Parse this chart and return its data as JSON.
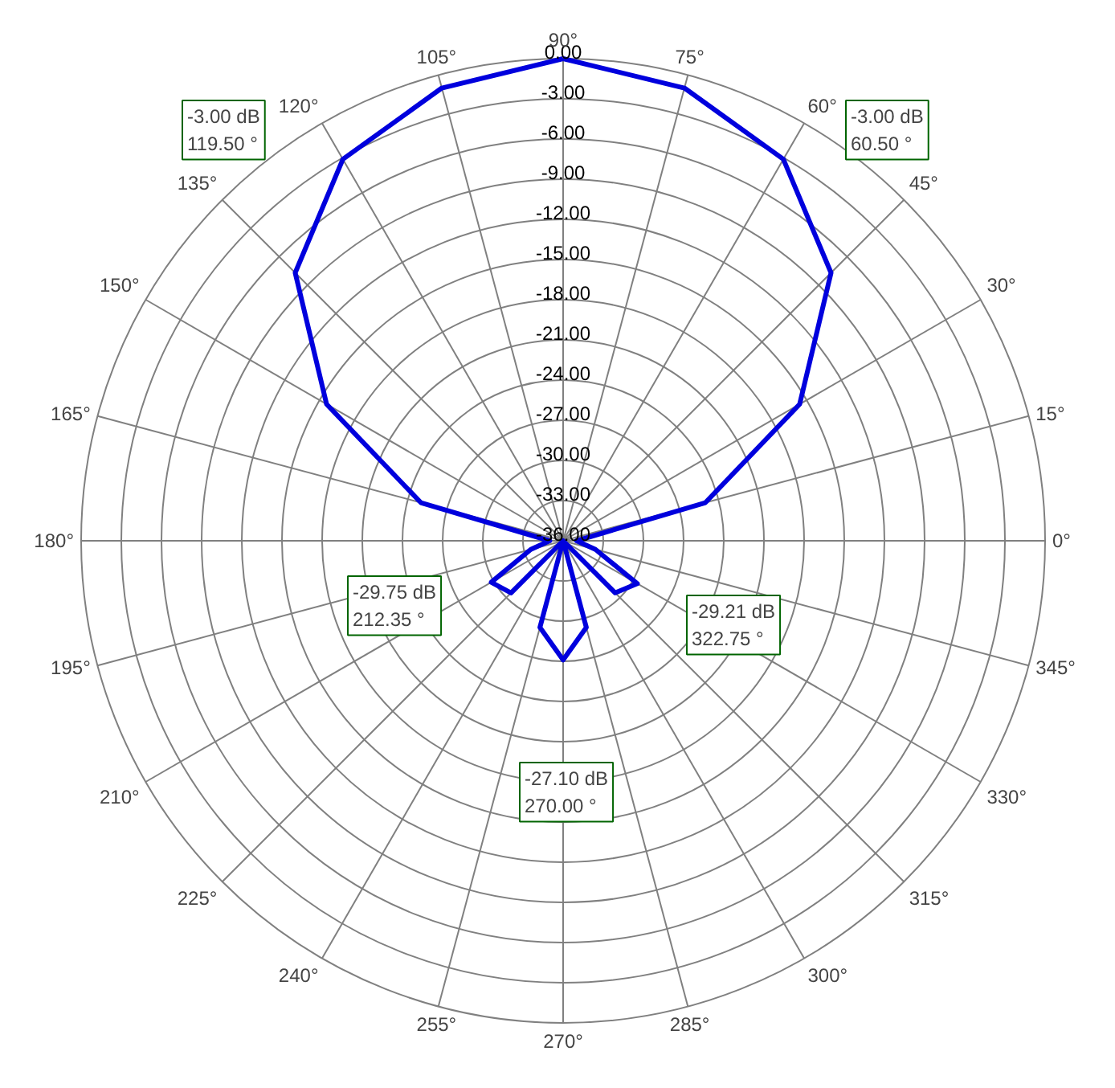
{
  "chart_data": {
    "type": "radar",
    "categories": [
      "90°",
      "75°",
      "60°",
      "45°",
      "30°",
      "15°",
      "0°",
      "345°",
      "330°",
      "315°",
      "300°",
      "285°",
      "270°",
      "255°",
      "240°",
      "225°",
      "210°",
      "195°",
      "180°",
      "165°",
      "150°",
      "135°",
      "120°",
      "105°"
    ],
    "series": [
      {
        "color": "#0000dd",
        "values": [
          0,
          -1.0,
          -3.1,
          -7.7,
          -15.6,
          -25.0,
          -35,
          -33.5,
          -29.6,
          -30.5,
          -36,
          -29.3,
          -27.1,
          -29.3,
          -36,
          -30.5,
          -29.8,
          -33.5,
          -35,
          -25.0,
          -15.6,
          -7.7,
          -3.1,
          -1.0
        ]
      }
    ],
    "ylim": [
      -36,
      0
    ],
    "yticks": [
      {
        "value": -36,
        "label": "-36.00"
      },
      {
        "value": -33,
        "label": "-33.00"
      },
      {
        "value": -30,
        "label": "-30.00"
      },
      {
        "value": -27,
        "label": "-27.00"
      },
      {
        "value": -24,
        "label": "-24.00"
      },
      {
        "value": -21,
        "label": "-21.00"
      },
      {
        "value": -18,
        "label": "-18.00"
      },
      {
        "value": -15,
        "label": "-15.00"
      },
      {
        "value": -12,
        "label": "-12.00"
      },
      {
        "value": -9,
        "label": "-9.00"
      },
      {
        "value": -6,
        "label": "-6.00"
      },
      {
        "value": -3,
        "label": "-3.00"
      },
      {
        "value": 0,
        "label": "0.00"
      }
    ],
    "grid": true,
    "annotations": [
      "-3.00 dB\n119.50 °",
      "-3.00 dB\n60.50 °",
      "-29.75 dB\n212.35 °",
      "-29.21 dB\n322.75 °",
      "-27.10 dB\n270.00 °"
    ]
  }
}
